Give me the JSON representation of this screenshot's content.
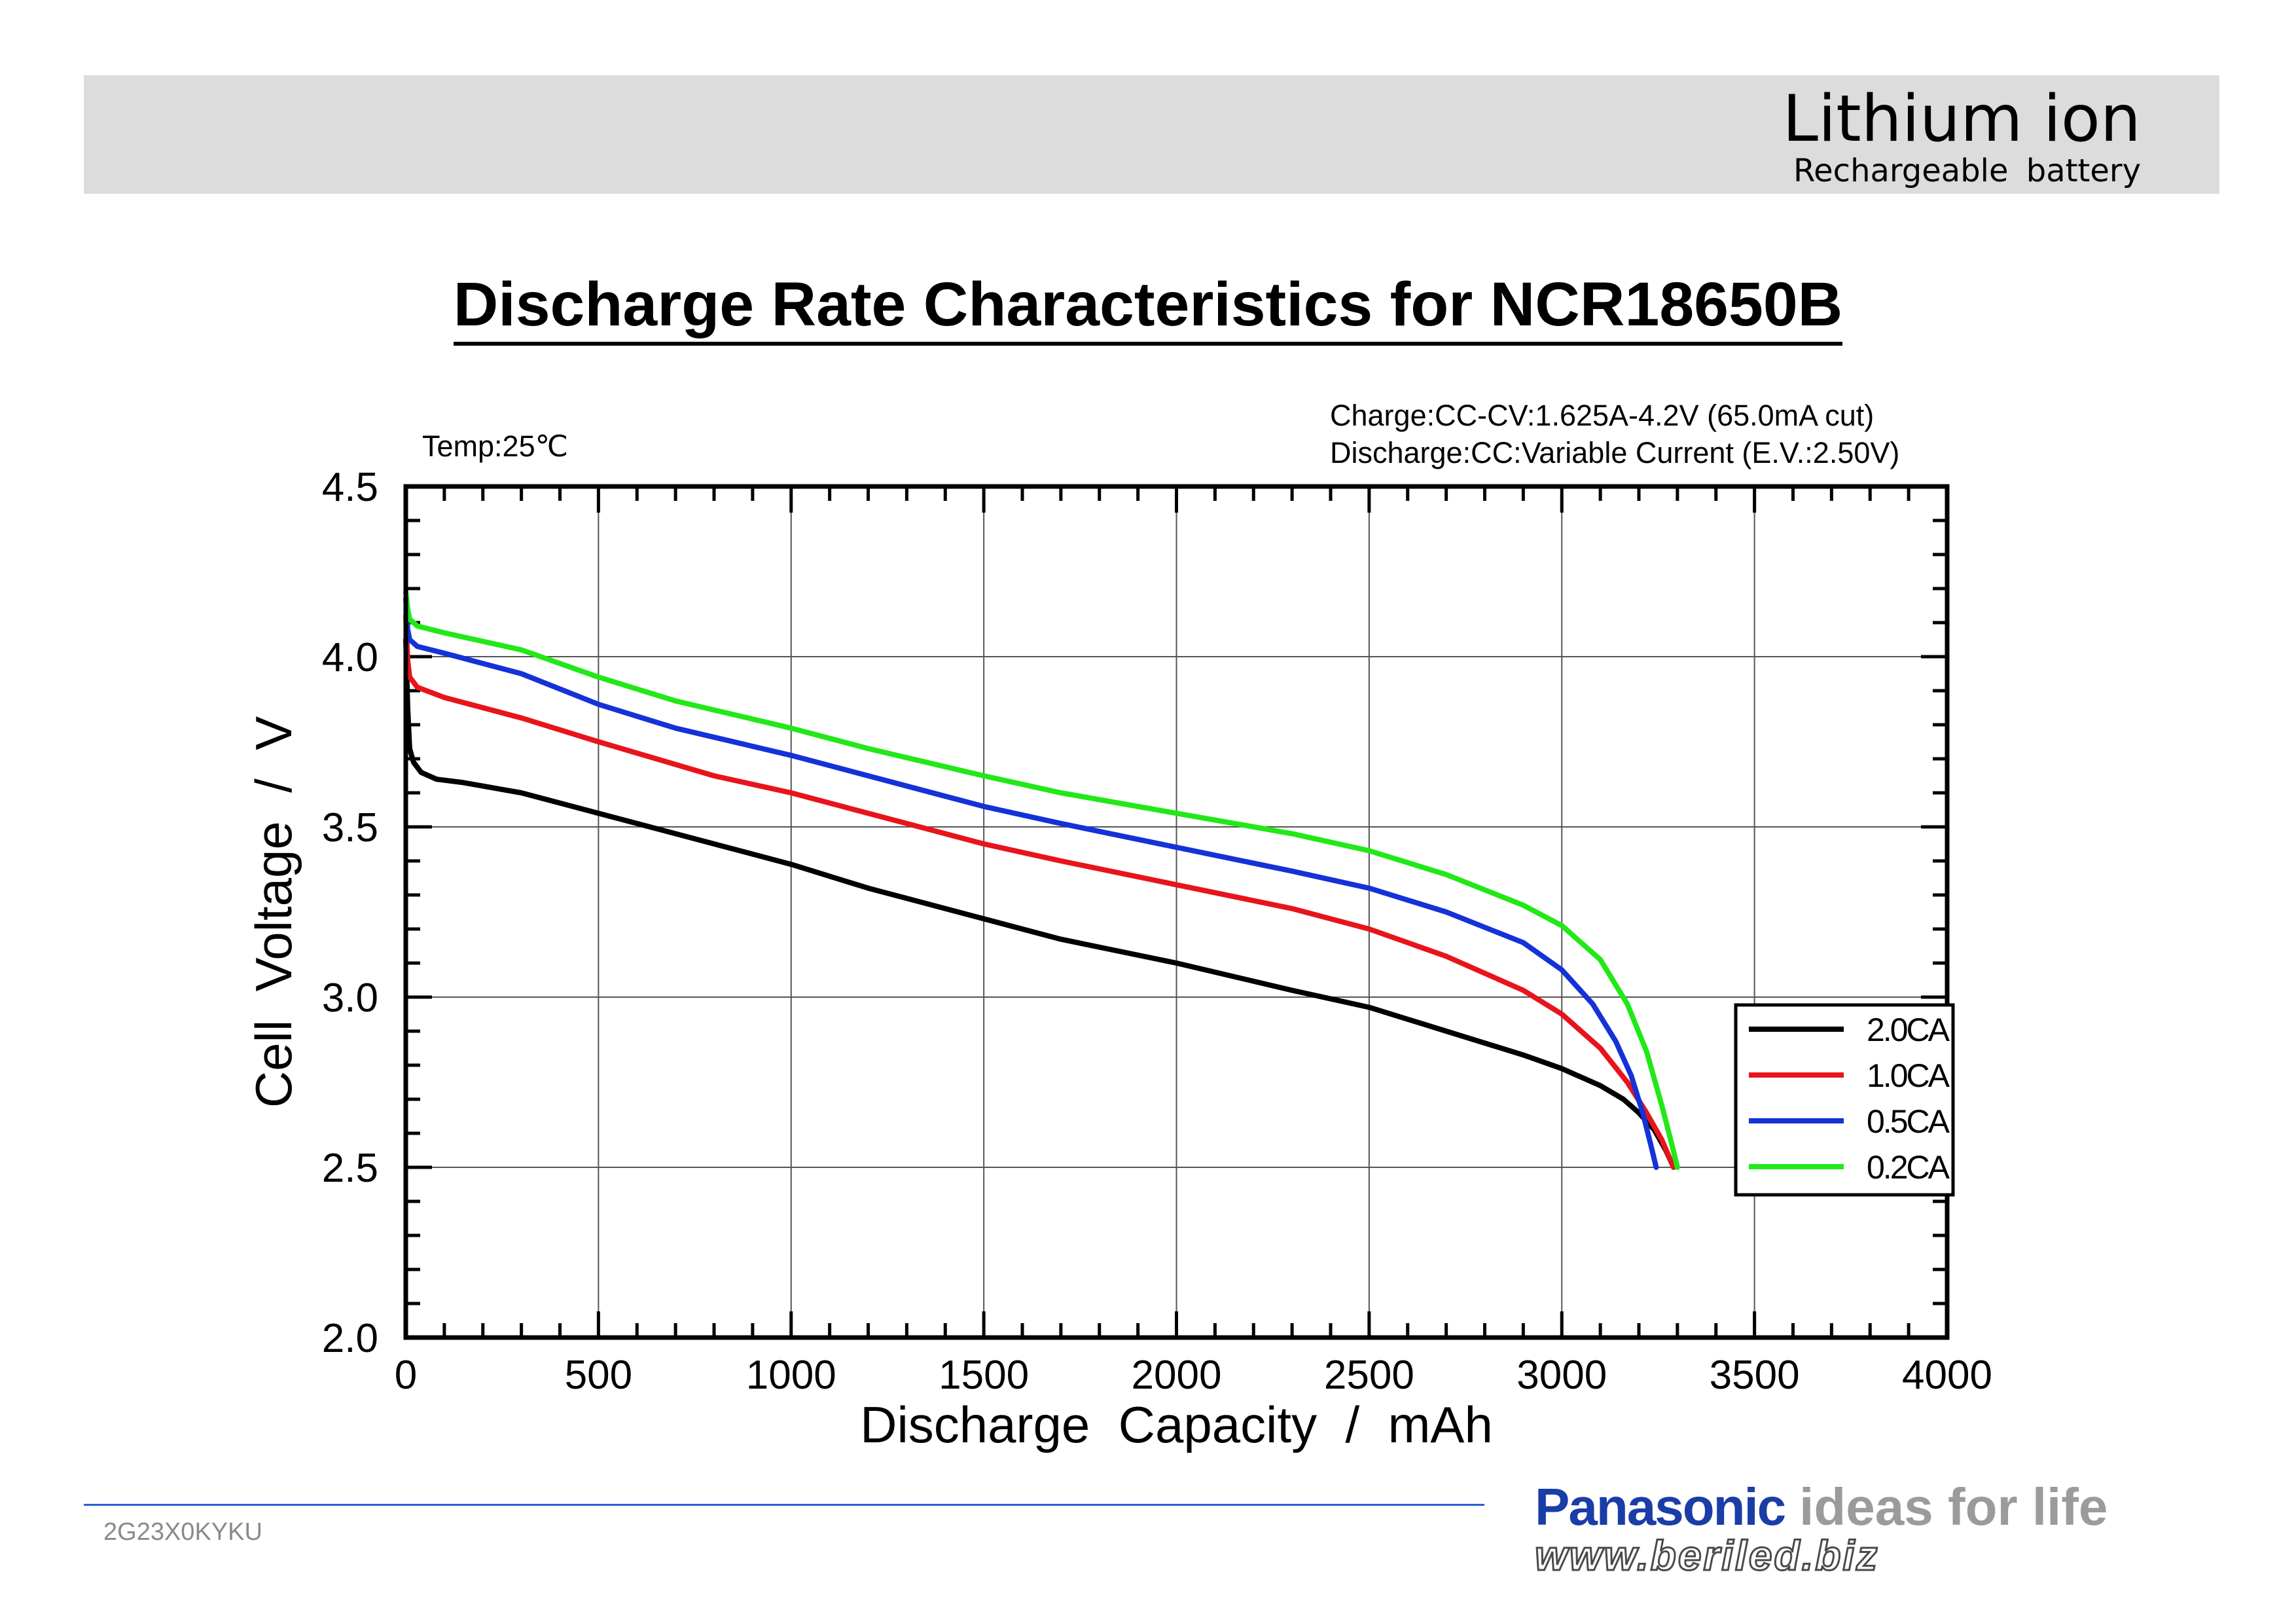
{
  "header": {
    "title": "Lithium ion",
    "subtitle": "Rechargeable battery"
  },
  "page_title": "Discharge Rate Characteristics for NCR18650B",
  "footer": {
    "doc_code": "2G23X0KYKU",
    "brand_name": "Panasonic",
    "brand_tagline": "ideas for life",
    "website": "www.beriled.biz"
  },
  "colors": {
    "2.0CA": "#000000",
    "1.0CA": "#e8141c",
    "0.5CA": "#1432d8",
    "0.2CA": "#22e818",
    "header_band": "#dcdcdc",
    "brand_blue": "#1a3da7"
  },
  "chart_data": {
    "type": "line",
    "title": "",
    "xlabel": "Discharge  Capacity  /  mAh",
    "ylabel": "Cell  Voltage  /  V",
    "xlim": [
      0,
      4000
    ],
    "ylim": [
      2.0,
      4.5
    ],
    "xticks": [
      0,
      500,
      1000,
      1500,
      2000,
      2500,
      3000,
      3500,
      4000
    ],
    "yticks": [
      "2.0",
      "2.5",
      "3.0",
      "3.5",
      "4.0",
      "4.5"
    ],
    "grid": true,
    "legend_position": "lower-right",
    "annotations": {
      "temperature": "Temp:25℃",
      "charge_condition": "Charge:CC-CV:1.625A-4.2V (65.0mA cut)",
      "discharge_condition": "Discharge:CC:Variable Current (E.V.:2.50V)"
    },
    "series": [
      {
        "name": "2.0CA",
        "x": [
          0,
          5,
          10,
          20,
          40,
          80,
          150,
          300,
          500,
          800,
          1000,
          1200,
          1500,
          1700,
          2000,
          2300,
          2500,
          2700,
          2900,
          3000,
          3100,
          3160,
          3200,
          3240,
          3270,
          3290
        ],
        "y": [
          4.05,
          3.85,
          3.73,
          3.69,
          3.66,
          3.64,
          3.63,
          3.6,
          3.54,
          3.45,
          3.39,
          3.32,
          3.23,
          3.17,
          3.1,
          3.02,
          2.97,
          2.9,
          2.83,
          2.79,
          2.74,
          2.7,
          2.66,
          2.61,
          2.55,
          2.5
        ]
      },
      {
        "name": "1.0CA",
        "x": [
          0,
          5,
          10,
          30,
          100,
          300,
          500,
          800,
          1000,
          1200,
          1500,
          1700,
          2000,
          2300,
          2500,
          2700,
          2900,
          3000,
          3100,
          3170,
          3220,
          3260,
          3290
        ],
        "y": [
          4.12,
          3.99,
          3.94,
          3.91,
          3.88,
          3.82,
          3.75,
          3.65,
          3.6,
          3.54,
          3.45,
          3.4,
          3.33,
          3.26,
          3.2,
          3.12,
          3.02,
          2.95,
          2.85,
          2.75,
          2.66,
          2.58,
          2.5
        ]
      },
      {
        "name": "0.5CA",
        "x": [
          0,
          5,
          10,
          30,
          100,
          300,
          500,
          700,
          1000,
          1200,
          1500,
          1700,
          2000,
          2300,
          2500,
          2700,
          2900,
          3000,
          3080,
          3140,
          3180,
          3210,
          3230,
          3245
        ],
        "y": [
          4.17,
          4.08,
          4.05,
          4.03,
          4.01,
          3.95,
          3.86,
          3.79,
          3.71,
          3.65,
          3.56,
          3.51,
          3.44,
          3.37,
          3.32,
          3.25,
          3.16,
          3.08,
          2.98,
          2.87,
          2.77,
          2.66,
          2.57,
          2.5
        ]
      },
      {
        "name": "0.2CA",
        "x": [
          0,
          5,
          10,
          30,
          100,
          300,
          500,
          700,
          1000,
          1200,
          1500,
          1700,
          2000,
          2300,
          2500,
          2700,
          2900,
          3000,
          3100,
          3170,
          3220,
          3260,
          3285,
          3300
        ],
        "y": [
          4.19,
          4.14,
          4.11,
          4.09,
          4.07,
          4.02,
          3.94,
          3.87,
          3.79,
          3.73,
          3.65,
          3.6,
          3.54,
          3.48,
          3.43,
          3.36,
          3.27,
          3.21,
          3.11,
          2.98,
          2.84,
          2.68,
          2.57,
          2.5
        ]
      }
    ]
  }
}
